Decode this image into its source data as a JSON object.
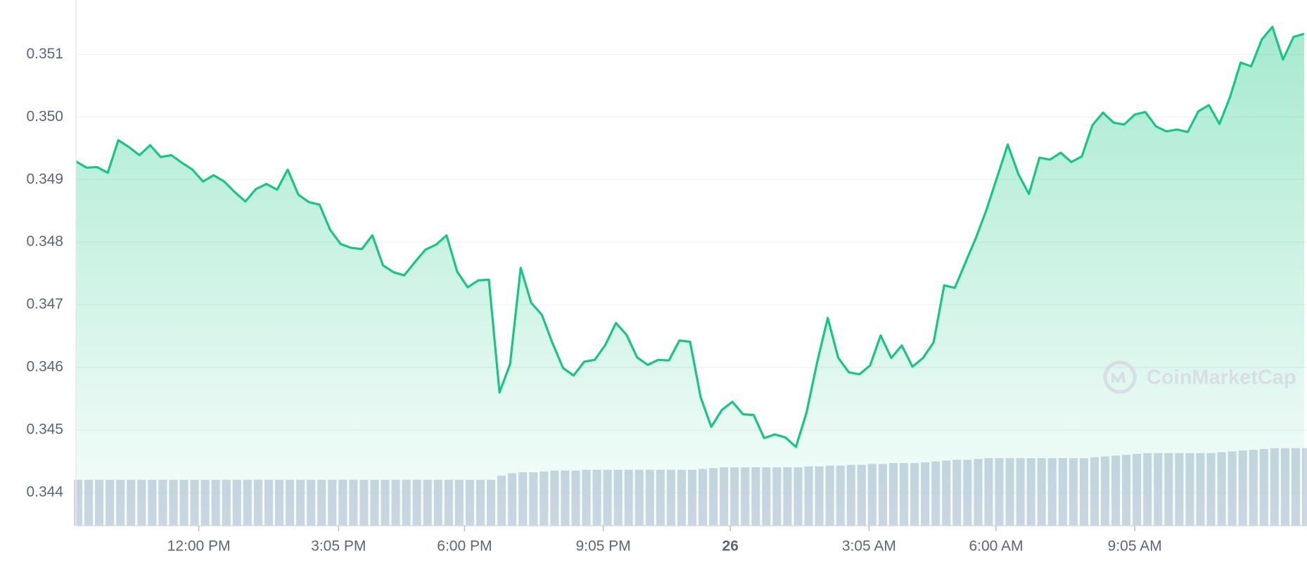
{
  "chart_data": {
    "type": "area",
    "color": "#16c784",
    "values": [
      0.34929,
      0.34919,
      0.3492,
      0.34911,
      0.34963,
      0.34952,
      0.34939,
      0.34955,
      0.34936,
      0.34939,
      0.34927,
      0.34916,
      0.34897,
      0.34907,
      0.34897,
      0.3488,
      0.34865,
      0.34885,
      0.34893,
      0.34884,
      0.34916,
      0.34876,
      0.34864,
      0.3486,
      0.3482,
      0.34797,
      0.34791,
      0.34789,
      0.34811,
      0.34763,
      0.34752,
      0.34747,
      0.34768,
      0.34788,
      0.34796,
      0.34811,
      0.34753,
      0.34728,
      0.34739,
      0.3474,
      0.3456,
      0.34605,
      0.34759,
      0.34703,
      0.34684,
      0.34639,
      0.34599,
      0.34587,
      0.34609,
      0.34612,
      0.34636,
      0.34671,
      0.34652,
      0.34616,
      0.34604,
      0.34612,
      0.34611,
      0.34643,
      0.34641,
      0.34552,
      0.34505,
      0.34532,
      0.34545,
      0.34525,
      0.34524,
      0.34487,
      0.34493,
      0.34488,
      0.34473,
      0.34528,
      0.34608,
      0.34679,
      0.34615,
      0.34592,
      0.34589,
      0.34603,
      0.34651,
      0.34615,
      0.34635,
      0.34601,
      0.34615,
      0.3464,
      0.34731,
      0.34727,
      0.34767,
      0.34807,
      0.34852,
      0.34904,
      0.34956,
      0.34909,
      0.34877,
      0.34935,
      0.34932,
      0.34943,
      0.34928,
      0.34937,
      0.34987,
      0.35007,
      0.34991,
      0.34988,
      0.35004,
      0.35008,
      0.34985,
      0.34977,
      0.3498,
      0.34976,
      0.35009,
      0.35019,
      0.34989,
      0.35032,
      0.35087,
      0.35081,
      0.35124,
      0.35144,
      0.35092,
      0.35128,
      0.35133
    ],
    "volume": [
      55,
      55,
      55,
      55,
      55,
      55,
      55,
      55,
      55,
      55,
      55,
      55,
      55,
      55,
      55,
      55,
      55,
      55,
      55,
      55,
      55,
      55,
      55,
      55,
      55,
      55,
      55,
      55,
      55,
      55,
      55,
      55,
      55,
      55,
      55,
      55,
      55,
      55,
      55,
      55,
      60,
      63,
      64,
      64,
      65,
      66,
      66,
      66,
      67,
      67,
      67,
      67,
      67,
      67,
      67,
      67,
      67,
      67,
      67,
      68,
      69,
      70,
      70,
      70,
      70,
      70,
      70,
      70,
      70,
      71,
      71,
      72,
      72,
      73,
      73,
      74,
      74,
      75,
      75,
      75,
      76,
      77,
      78,
      79,
      79,
      80,
      81,
      81,
      81,
      81,
      81,
      81,
      81,
      81,
      81,
      81,
      82,
      83,
      84,
      85,
      86,
      87,
      87,
      87,
      87,
      87,
      87,
      87,
      88,
      89,
      90,
      91,
      92,
      93,
      93,
      93,
      93
    ],
    "volume_color": "#cfd6e4",
    "y2lim": [
      0,
      630
    ],
    "xlim": [
      0,
      116
    ],
    "ylim": [
      0.34347,
      0.35187
    ],
    "yticks": [
      0.344,
      0.345,
      0.346,
      0.347,
      0.348,
      0.349,
      {
        "value": 0.35,
        "label": "0.350"
      },
      0.351
    ],
    "xticks": [
      {
        "value": 11.6,
        "label": "12:00 PM"
      },
      {
        "value": 24.8,
        "label": "3:05 PM"
      },
      {
        "value": 36.7,
        "label": "6:00 PM"
      },
      {
        "value": 49.8,
        "label": "9:05 PM"
      },
      {
        "value": 61.8,
        "label": "26",
        "bold": true
      },
      {
        "value": 74.9,
        "label": "3:05 AM"
      },
      {
        "value": 86.9,
        "label": "6:00 AM"
      },
      {
        "value": 100,
        "label": "9:05 AM"
      }
    ],
    "grid": true,
    "watermark": "CoinMarketCap"
  }
}
